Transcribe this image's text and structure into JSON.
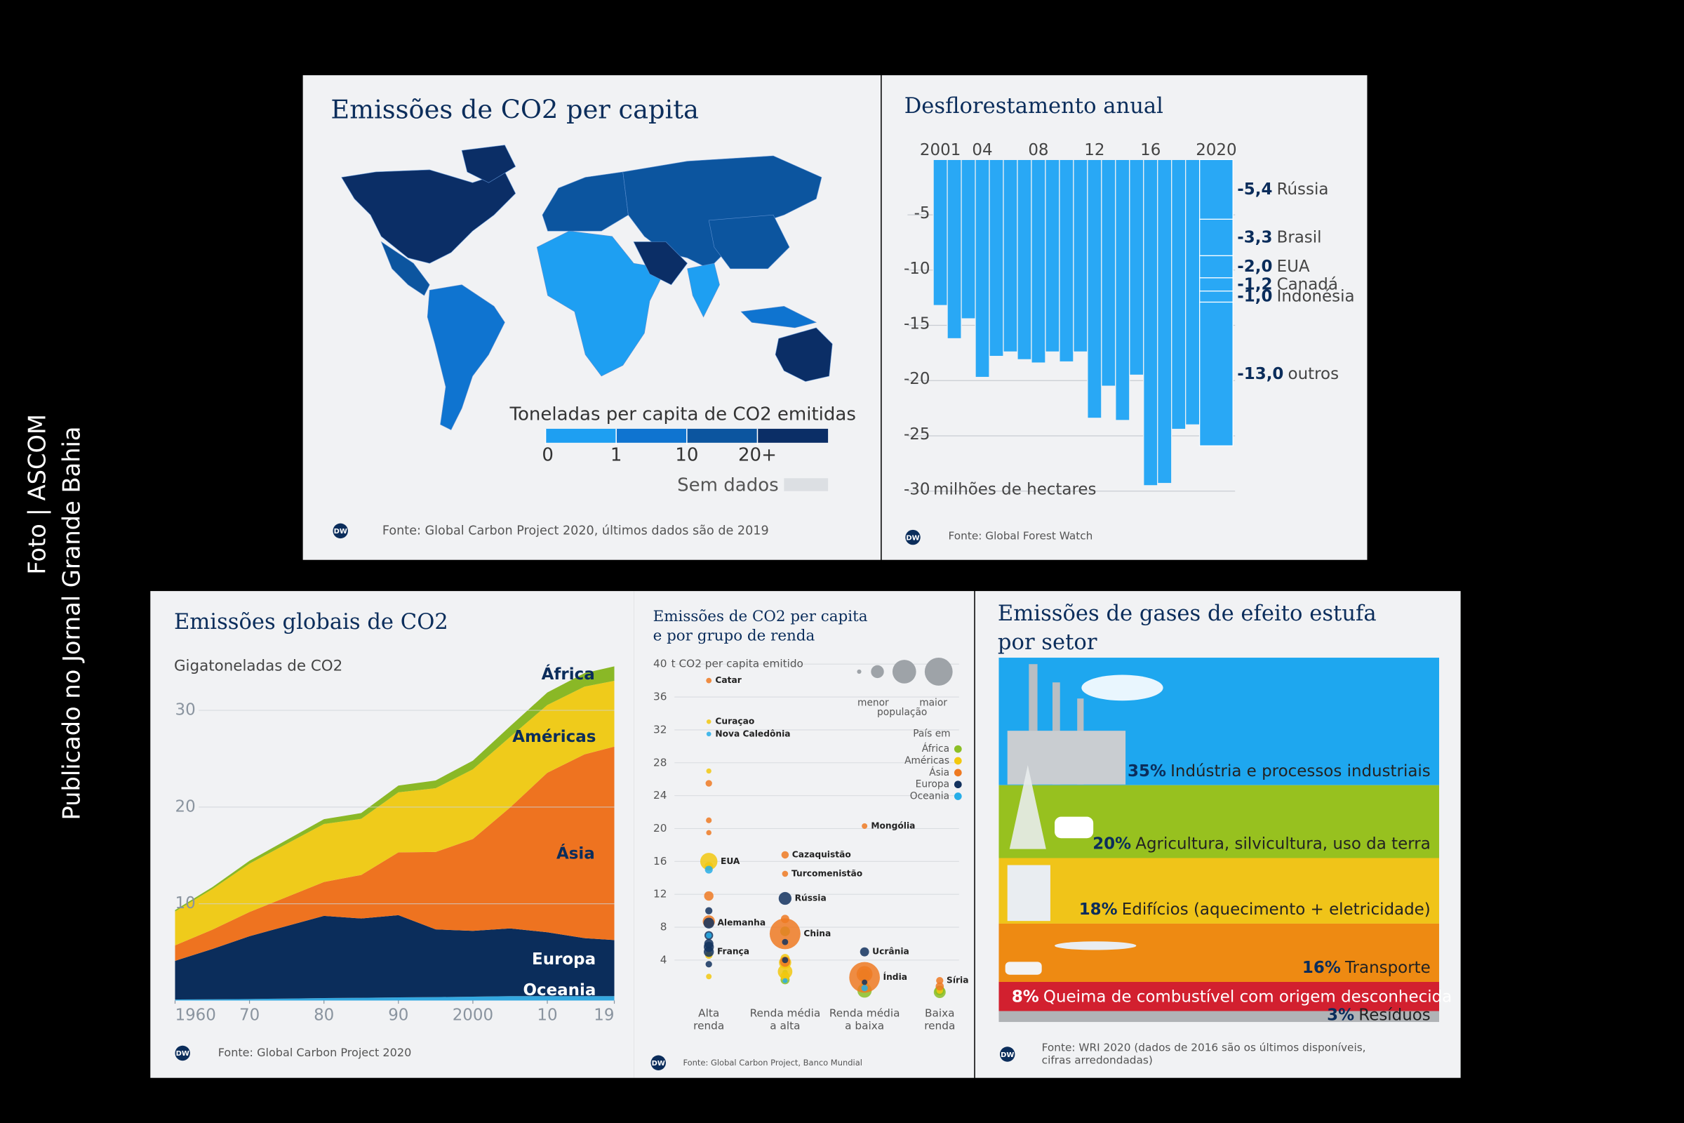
{
  "credit": [
    "Foto | ASCOM",
    "Publicado no Jornal Grande Bahia"
  ],
  "logo": "DW",
  "chart_data": [
    {
      "type": "map",
      "title": "Emissões de CO2 per capita",
      "legend_title": "Toneladas per capita de CO2 emitidas",
      "legend_ticks": [
        0,
        1,
        10,
        {
          "value": 20,
          "label": "20+"
        }
      ],
      "colors": [
        "#1e9ff2",
        "#0f74d0",
        "#0c559f",
        "#0b2e66"
      ],
      "no_data_label": "Sem dados",
      "no_data_color": "#dcdfe3",
      "source": "Fonte: Global Carbon Project 2020, últimos dados são de 2019"
    },
    {
      "type": "bar",
      "title": "Desflorestamento anual",
      "categories": [
        "2001",
        null,
        null,
        "04",
        null,
        null,
        null,
        "08",
        null,
        null,
        null,
        "12",
        null,
        null,
        null,
        "16",
        null,
        null,
        null,
        "2020"
      ],
      "values": [
        -13.2,
        -16.2,
        -14.4,
        -19.7,
        -17.8,
        -17.4,
        -18.1,
        -18.4,
        -17.4,
        -18.3,
        -17.4,
        -23.4,
        -20.5,
        -23.6,
        -19.5,
        -29.5,
        -29.3,
        -24.4,
        -24.0,
        -25.8
      ],
      "color": "#29a8f5",
      "ylim": [
        0,
        -30
      ],
      "yticks": [
        -5,
        -10,
        -15,
        -20,
        -25,
        -30
      ],
      "y_unit": "milhões de hectares",
      "grid": true,
      "breakdown": {
        "names": [
          "Rússia",
          "Brasil",
          "EUA",
          "Canadá",
          "Indonésia",
          "outros"
        ],
        "values": [
          -5.4,
          -3.3,
          -2.0,
          -1.2,
          -1.0,
          -13.0
        ],
        "value_labels": [
          "-5,4",
          "-3,3",
          "-2,0",
          "-1,2",
          "-1,0",
          "-13,0"
        ]
      },
      "source": "Fonte: Global Forest Watch"
    },
    {
      "type": "area",
      "title": "Emissões globais de CO2",
      "y_label": "Gigatoneladas de CO2",
      "x": [
        1960,
        1965,
        1970,
        1975,
        1980,
        1985,
        1990,
        1995,
        2000,
        2005,
        2010,
        2015,
        2019
      ],
      "series": [
        {
          "name": "Oceania",
          "color": "#34a8e0",
          "values": [
            0.1,
            0.12,
            0.15,
            0.2,
            0.25,
            0.28,
            0.32,
            0.35,
            0.4,
            0.45,
            0.45,
            0.45,
            0.45
          ]
        },
        {
          "name": "Europa",
          "color": "#0b2d5b",
          "values": [
            4.0,
            5.2,
            6.5,
            7.5,
            8.5,
            8.2,
            8.5,
            7.0,
            6.8,
            7.0,
            6.6,
            6.0,
            5.8
          ]
        },
        {
          "name": "Ásia",
          "color": "#ee7320",
          "values": [
            1.6,
            2.0,
            2.5,
            3.0,
            3.5,
            4.5,
            6.5,
            8.0,
            9.5,
            12.5,
            16.5,
            19.0,
            20.0
          ]
        },
        {
          "name": "Américas",
          "color": "#efcb1b",
          "values": [
            3.5,
            4.2,
            5.0,
            5.5,
            6.0,
            5.8,
            6.2,
            6.6,
            7.2,
            7.3,
            7.0,
            7.0,
            6.8
          ]
        },
        {
          "name": "África",
          "color": "#8ab826",
          "values": [
            0.15,
            0.2,
            0.3,
            0.4,
            0.5,
            0.6,
            0.7,
            0.8,
            0.9,
            1.1,
            1.3,
            1.4,
            1.5
          ]
        }
      ],
      "xlim": [
        1960,
        2019
      ],
      "xticks": [
        1960,
        {
          "value": 1970,
          "label": "70"
        },
        {
          "value": 1980,
          "label": "80"
        },
        {
          "value": 1990,
          "label": "90"
        },
        2000,
        {
          "value": 2010,
          "label": "10"
        },
        {
          "value": 2019,
          "label": "19"
        }
      ],
      "ylim": [
        0,
        34
      ],
      "yticks": [
        10,
        20,
        30
      ],
      "grid": true,
      "source": "Fonte: Global Carbon Project 2020"
    },
    {
      "type": "scatter",
      "title": [
        "Emissões de CO2 per capita",
        "e por grupo de renda"
      ],
      "y_unit": "t CO2 per capita emitido",
      "categories": [
        [
          "Alta",
          "renda"
        ],
        [
          "Renda média",
          "a alta"
        ],
        [
          "Renda média",
          "a baixa"
        ],
        [
          "Baixa",
          "renda"
        ]
      ],
      "ylim": [
        0,
        40
      ],
      "yticks": [
        4,
        8,
        12,
        16,
        20,
        24,
        28,
        32,
        36,
        40
      ],
      "grid": true,
      "legend_title": "País em",
      "size_legend": [
        "menor",
        "maior",
        "população"
      ],
      "series": [
        {
          "name": "África",
          "color": "#8cbf26",
          "group": [
            1,
            1,
            1,
            2,
            2,
            2,
            2,
            3,
            3,
            3
          ],
          "values": [
            7.5,
            1.6,
            2.5,
            0.3,
            2.2,
            1.8,
            0.9,
            0.1,
            0.3,
            0.2
          ],
          "sizes": [
            59,
            44,
            2,
            200,
            100,
            44,
            30,
            115,
            60,
            20
          ],
          "labels": [
            null,
            null,
            null,
            null,
            null,
            null,
            null,
            null,
            null,
            null
          ]
        },
        {
          "name": "Américas",
          "color": "#f2c80f",
          "group": [
            0,
            0,
            0,
            0,
            0,
            0,
            1,
            1,
            1,
            1,
            2,
            2,
            3
          ],
          "values": [
            33,
            27,
            16,
            15.4,
            4.6,
            2.0,
            2.6,
            3.7,
            4.2,
            2.0,
            1.0,
            1.1,
            0.3
          ],
          "sizes": [
            0.16,
            1.4,
            330,
            38,
            19,
            3,
            210,
            128,
            45,
            50,
            11,
            10,
            11
          ],
          "labels": [
            "Curaçao",
            null,
            "EUA",
            null,
            null,
            null,
            null,
            null,
            null,
            null,
            null,
            null,
            null
          ]
        },
        {
          "name": "Ásia",
          "color": "#ee7a22",
          "group": [
            0,
            0,
            0,
            0,
            0,
            0,
            1,
            1,
            1,
            1,
            1,
            2,
            2,
            2,
            3,
            3
          ],
          "values": [
            38,
            25.5,
            21,
            19.5,
            11.8,
            8.7,
            16.8,
            14.5,
            7.2,
            9,
            3.8,
            20.3,
            1.9,
            2.3,
            1.5,
            0.8
          ],
          "sizes": [
            2.8,
            10,
            4.3,
            1.7,
            52,
            126,
            19,
            6,
            1400,
            33,
            70,
            3.3,
            1380,
            270,
            17,
            30
          ],
          "labels": [
            "Catar",
            null,
            null,
            null,
            null,
            null,
            "Cazaquistão",
            "Turcomenistão",
            "China",
            null,
            null,
            "Mongólia",
            "Índia",
            null,
            "Síria",
            null
          ]
        },
        {
          "name": "Europa",
          "color": "#13325e",
          "group": [
            0,
            0,
            0,
            0,
            0,
            0,
            0,
            1,
            1,
            1,
            2,
            2
          ],
          "values": [
            8.5,
            5,
            5.6,
            10,
            6,
            7,
            3.5,
            11.5,
            6.2,
            4,
            5,
            1.3
          ],
          "sizes": [
            83,
            67,
            67,
            17,
            47,
            38,
            10,
            145,
            7,
            7,
            44,
            3
          ],
          "labels": [
            "Alemanha",
            "França",
            null,
            null,
            null,
            null,
            null,
            "Rússia",
            null,
            null,
            "Ucrânia",
            null
          ]
        },
        {
          "name": "Oceania",
          "color": "#27aee8",
          "group": [
            0,
            0,
            0,
            1,
            2
          ],
          "values": [
            31.5,
            15,
            7,
            1.5,
            0.6
          ],
          "sizes": [
            0.29,
            25,
            5,
            0.9,
            9
          ],
          "labels": [
            "Nova Caledônia",
            null,
            null,
            null,
            null
          ]
        }
      ],
      "source": "Fonte: Global Carbon Project, Banco Mundial"
    },
    {
      "type": "stacked",
      "title": [
        "Emissões de gases de efeito estufa",
        "por setor"
      ],
      "categories": [
        "Indústria e processos industriais",
        "Agricultura, silvicultura, uso da terra",
        "Edifícios (aquecimento + eletricidade)",
        "Transporte",
        "Queima de combustível com origem desconhecida",
        "Resíduos"
      ],
      "values": [
        35,
        20,
        18,
        16,
        8,
        3
      ],
      "value_labels": [
        "35%",
        "20%",
        "18%",
        "16%",
        "8%",
        "3%"
      ],
      "colors": [
        "#1ea7ef",
        "#97c11f",
        "#f0c419",
        "#ee8a12",
        "#d2202f",
        "#b0b3b6"
      ],
      "source": [
        "Fonte: WRI 2020 (dados de 2016 são os últimos disponíveis,",
        "cifras arredondadas)"
      ]
    }
  ]
}
